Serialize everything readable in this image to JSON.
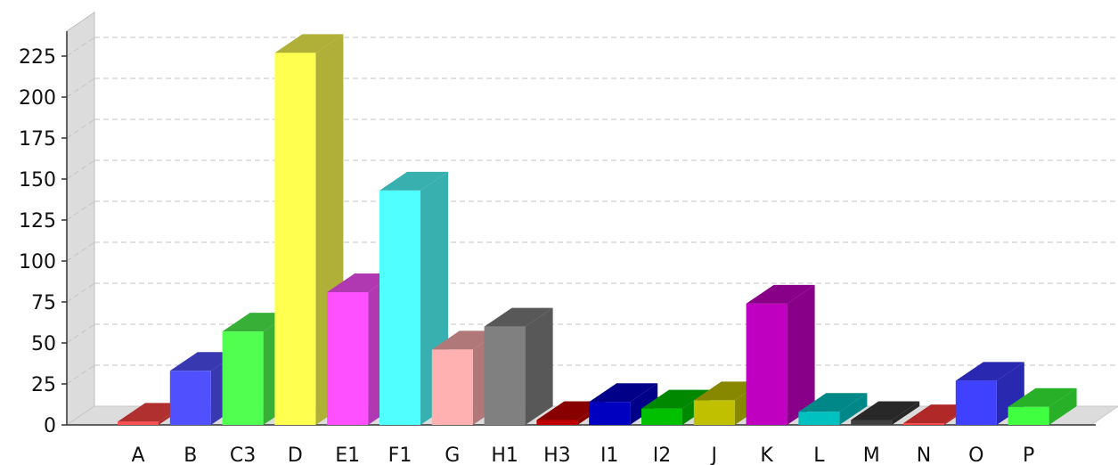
{
  "chart_data": {
    "type": "bar",
    "style": "3d",
    "grid": true,
    "ylim": [
      0,
      240
    ],
    "yticks": [
      0,
      25,
      50,
      75,
      100,
      125,
      150,
      175,
      200,
      225
    ],
    "categories": [
      "A",
      "B",
      "C3",
      "D",
      "E1",
      "F1",
      "G",
      "H1",
      "H3",
      "I1",
      "I2",
      "J",
      "K",
      "L",
      "M",
      "N",
      "O",
      "P"
    ],
    "values": [
      2,
      33,
      57,
      227,
      81,
      143,
      46,
      60,
      3,
      14,
      10,
      15,
      74,
      8,
      3,
      1,
      27,
      11
    ],
    "colors": [
      "#ff5050",
      "#5050ff",
      "#50ff50",
      "#ffff50",
      "#ff50ff",
      "#50ffff",
      "#ffb0b0",
      "#808080",
      "#c00000",
      "#0000c0",
      "#00c000",
      "#c0c000",
      "#c000c0",
      "#00c0c0",
      "#404040",
      "#ff4040",
      "#4040ff",
      "#40ff40"
    ],
    "side_colors": [
      "#b03030",
      "#3838b0",
      "#38b038",
      "#b0b038",
      "#b038b0",
      "#38b0b0",
      "#b07878",
      "#585858",
      "#880000",
      "#000088",
      "#008800",
      "#888800",
      "#880088",
      "#008888",
      "#282828",
      "#b02828",
      "#2828b0",
      "#28b028"
    ]
  }
}
